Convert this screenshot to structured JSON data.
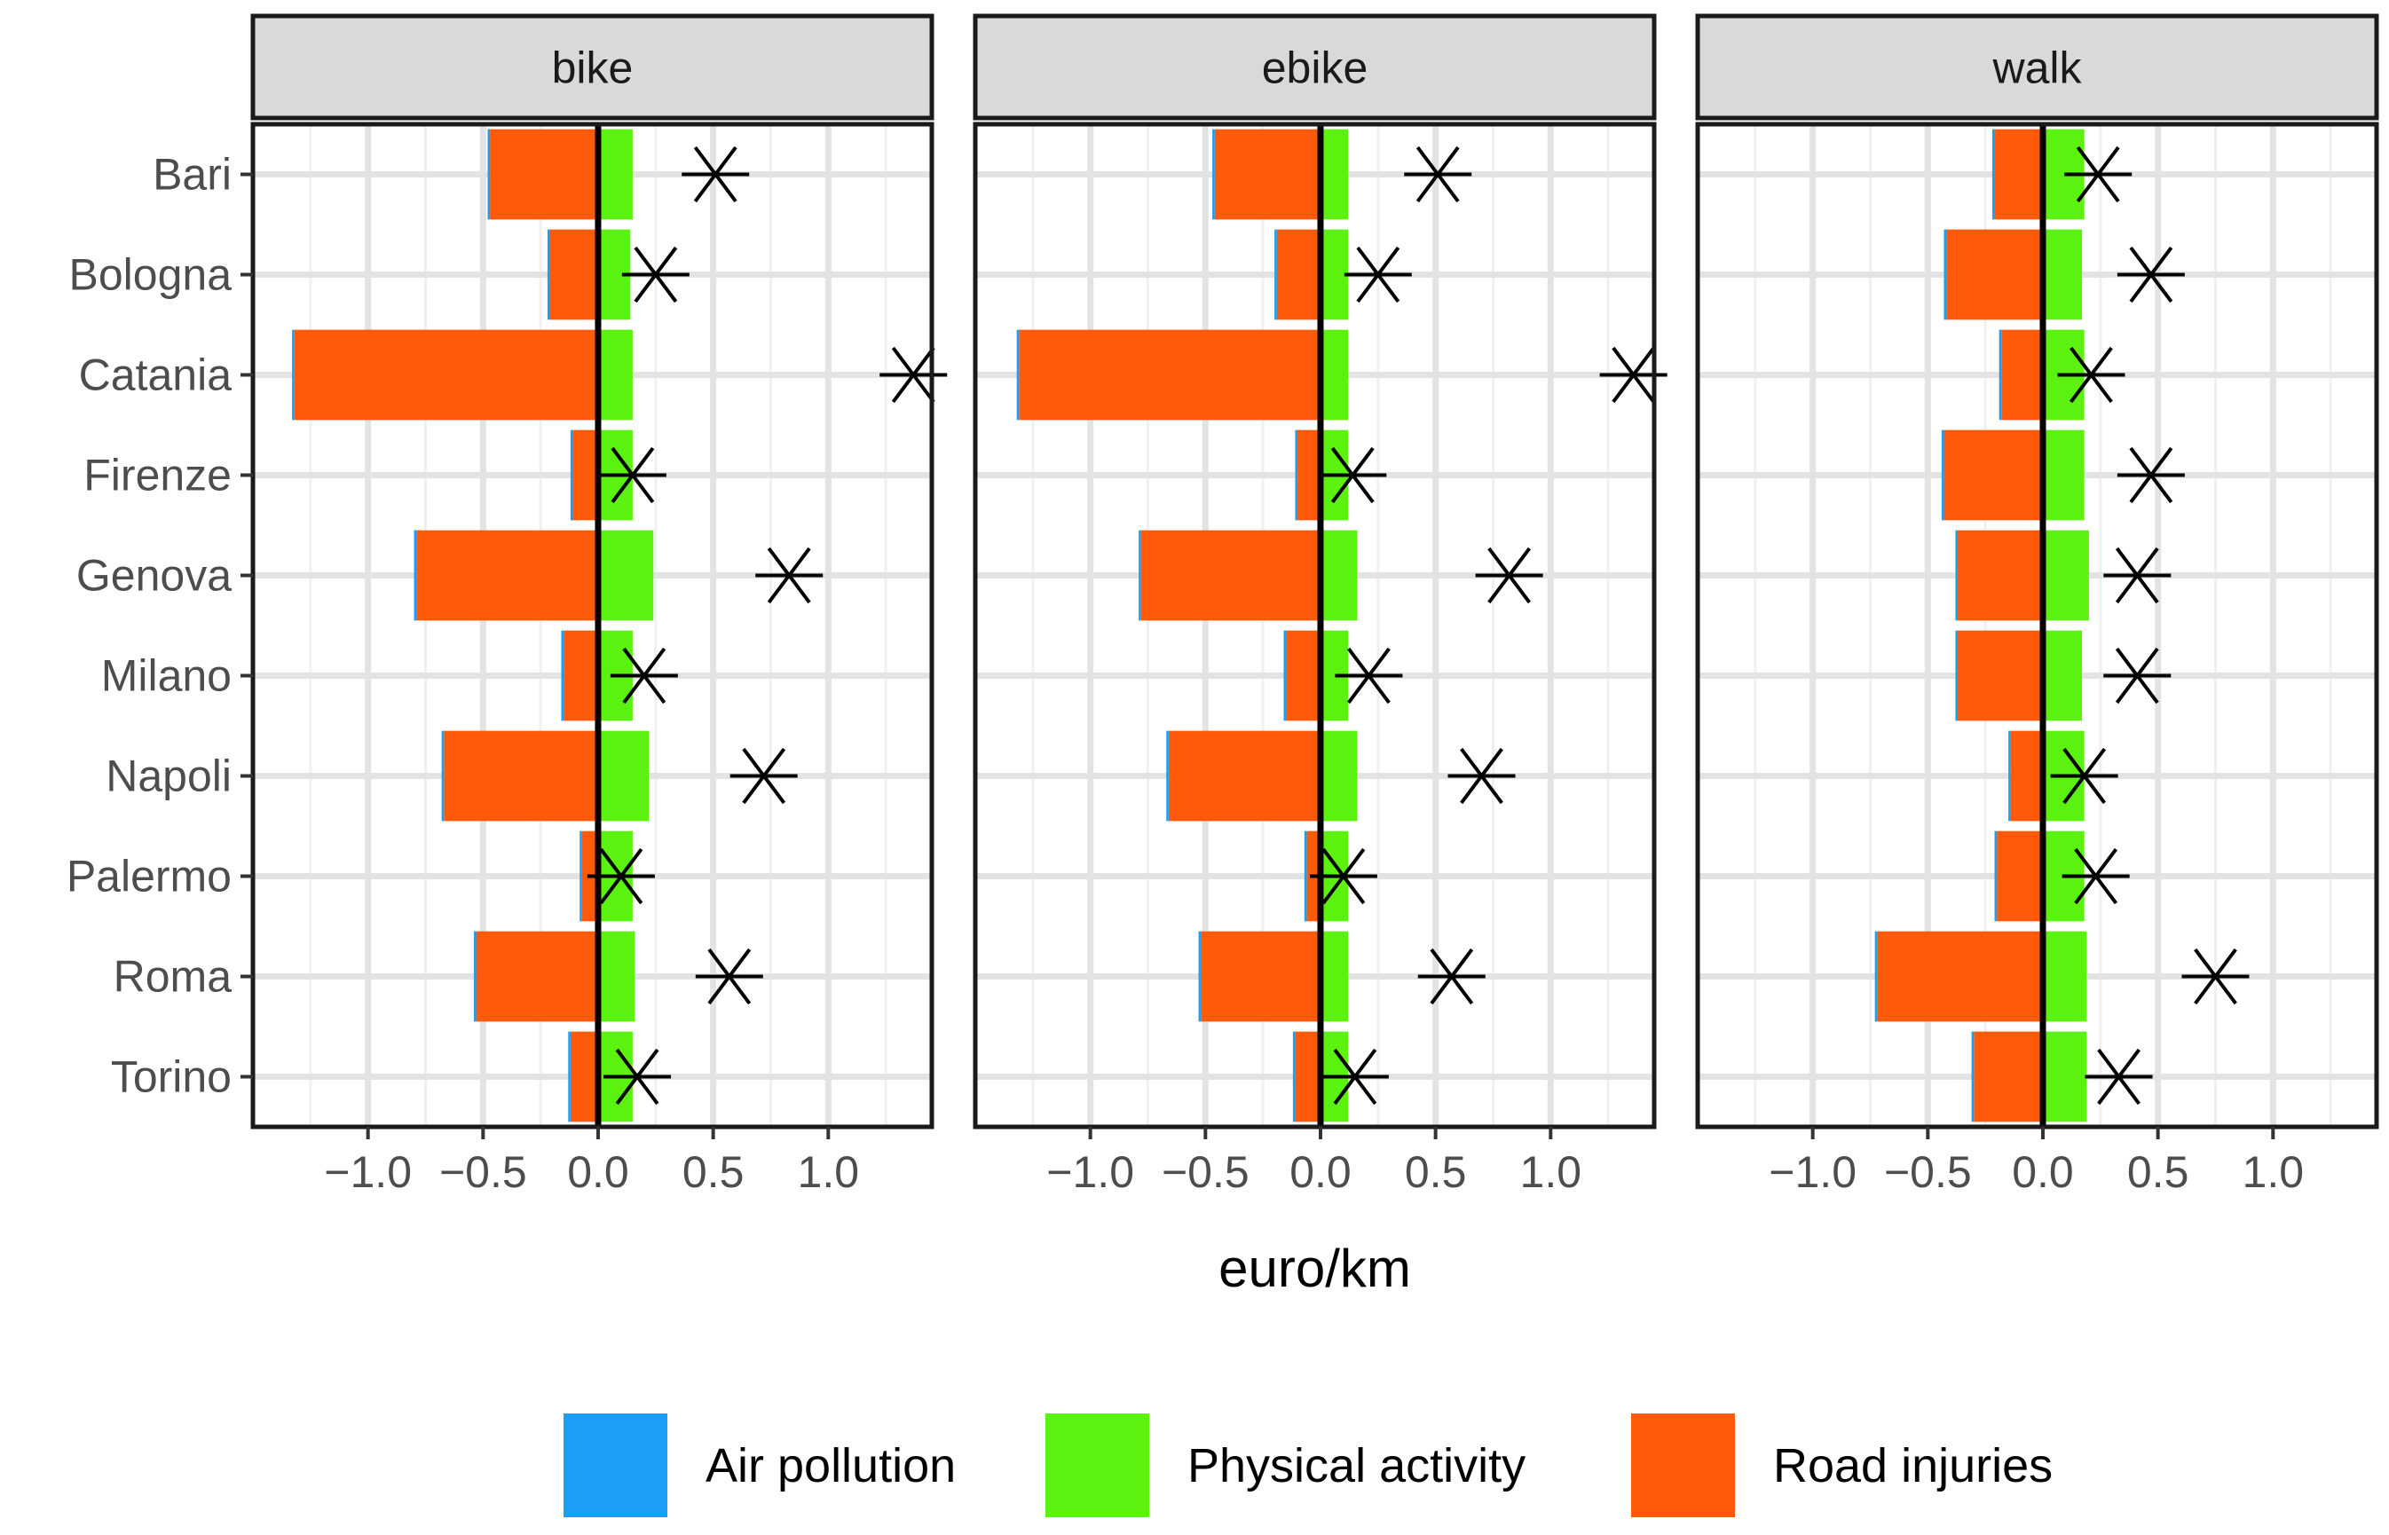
{
  "chart_data": {
    "type": "bar",
    "orientation": "horizontal",
    "stacked": true,
    "xlabel": "euro/km",
    "ylabel": "",
    "xlim": [
      -1.5,
      1.45
    ],
    "x_ticks": [
      -1.0,
      -0.5,
      0.0,
      0.5,
      1.0
    ],
    "x_tick_labels": [
      "−1.0",
      "−0.5",
      "0.0",
      "0.5",
      "1.0"
    ],
    "grid": true,
    "legend_position": "bottom",
    "categories": [
      "Bari",
      "Bologna",
      "Catania",
      "Firenze",
      "Genova",
      "Milano",
      "Napoli",
      "Palermo",
      "Roma",
      "Torino"
    ],
    "legend": [
      {
        "key": "air",
        "label": "Air pollution",
        "color": "#1a9ff5"
      },
      {
        "key": "phys",
        "label": "Physical activity",
        "color": "#5cf20f"
      },
      {
        "key": "road",
        "label": "Road injuries",
        "color": "#ff5a0a"
      }
    ],
    "net_marker": "asterisk",
    "panels": [
      {
        "name": "bike",
        "air": [
          -0.01,
          -0.01,
          -0.01,
          -0.01,
          -0.01,
          -0.01,
          -0.01,
          -0.01,
          -0.01,
          -0.01
        ],
        "phys": [
          0.15,
          0.14,
          0.15,
          0.15,
          0.24,
          0.15,
          0.22,
          0.15,
          0.16,
          0.15
        ],
        "road": [
          -0.47,
          -0.21,
          -1.32,
          -0.11,
          -0.79,
          -0.15,
          -0.67,
          -0.07,
          -0.53,
          -0.12
        ],
        "net": [
          0.51,
          0.25,
          1.37,
          0.15,
          0.83,
          0.2,
          0.72,
          0.1,
          0.57,
          0.17
        ]
      },
      {
        "name": "ebike",
        "air": [
          -0.01,
          -0.01,
          -0.01,
          -0.01,
          -0.01,
          -0.01,
          -0.01,
          -0.01,
          -0.01,
          -0.01
        ],
        "phys": [
          0.12,
          0.12,
          0.12,
          0.12,
          0.16,
          0.12,
          0.16,
          0.12,
          0.12,
          0.12
        ],
        "road": [
          -0.46,
          -0.19,
          -1.31,
          -0.1,
          -0.78,
          -0.15,
          -0.66,
          -0.06,
          -0.52,
          -0.11
        ],
        "net": [
          0.51,
          0.25,
          1.36,
          0.14,
          0.82,
          0.21,
          0.7,
          0.1,
          0.57,
          0.15
        ]
      },
      {
        "name": "walk",
        "air": [
          -0.01,
          -0.01,
          -0.01,
          -0.01,
          -0.01,
          -0.01,
          -0.01,
          -0.01,
          -0.01,
          -0.01
        ],
        "phys": [
          0.18,
          0.17,
          0.18,
          0.18,
          0.2,
          0.17,
          0.18,
          0.18,
          0.19,
          0.19
        ],
        "road": [
          -0.21,
          -0.42,
          -0.18,
          -0.43,
          -0.37,
          -0.37,
          -0.14,
          -0.2,
          -0.72,
          -0.3
        ],
        "net": [
          0.24,
          0.47,
          0.21,
          0.47,
          0.41,
          0.41,
          0.18,
          0.23,
          0.75,
          0.33
        ]
      }
    ]
  }
}
